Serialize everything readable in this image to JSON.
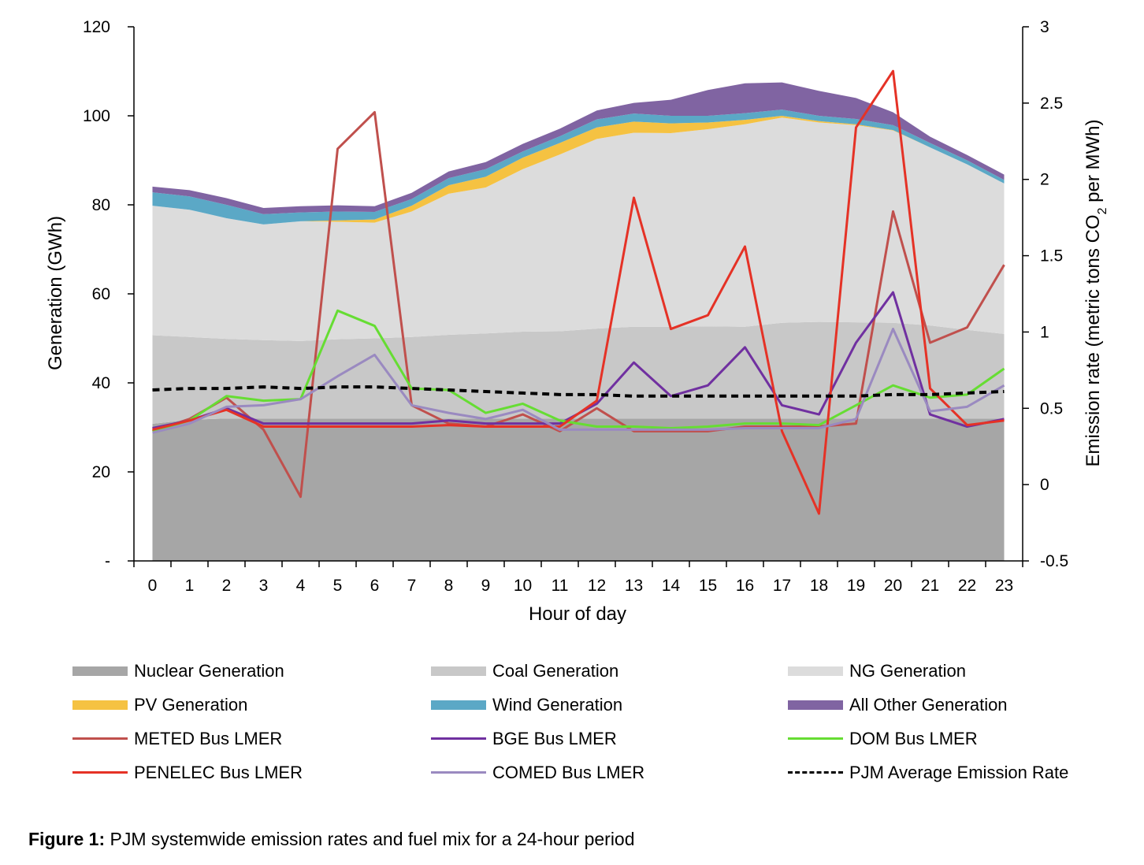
{
  "caption": {
    "label": "Figure 1:",
    "text": " PJM systemwide emission rates and fuel mix for a 24-hour period"
  },
  "chart_data": {
    "type": "area",
    "title": "",
    "xlabel": "Hour of day",
    "ylabel": "Generation (GWh)",
    "y2label_prefix": "Emission rate (metric tons CO",
    "y2label_sub": "2",
    "y2label_suffix": " per MWh)",
    "ylim": [
      0,
      120
    ],
    "y2lim": [
      -0.5,
      3
    ],
    "yticks": [
      0,
      20,
      40,
      60,
      80,
      100,
      120
    ],
    "ytick_labels": [
      "-",
      "20",
      "40",
      "60",
      "80",
      "100",
      "120"
    ],
    "y2ticks": [
      -0.5,
      0,
      0.5,
      1,
      1.5,
      2,
      2.5,
      3
    ],
    "y2tick_labels": [
      "-0.5",
      "0",
      "0.5",
      "1",
      "1.5",
      "2",
      "2.5",
      "3"
    ],
    "x": [
      0,
      1,
      2,
      3,
      4,
      5,
      6,
      7,
      8,
      9,
      10,
      11,
      12,
      13,
      14,
      15,
      16,
      17,
      18,
      19,
      20,
      21,
      22,
      23
    ],
    "xtick_labels": [
      "0",
      "1",
      "2",
      "3",
      "4",
      "5",
      "6",
      "7",
      "8",
      "9",
      "10",
      "11",
      "12",
      "13",
      "14",
      "15",
      "16",
      "17",
      "18",
      "19",
      "20",
      "21",
      "22",
      "23"
    ],
    "legend_position": "bottom",
    "stacked_series": [
      {
        "name": "Nuclear Generation",
        "color": "#a6a6a6",
        "values": [
          30.8,
          31.7,
          32.0,
          32.0,
          32.0,
          32.0,
          32.0,
          32.0,
          32.0,
          32.0,
          32.0,
          32.0,
          32.0,
          32.0,
          32.0,
          32.0,
          32.0,
          32.0,
          32.0,
          32.0,
          32.0,
          32.0,
          32.0,
          32.0
        ]
      },
      {
        "name": "Coal Generation",
        "color": "#c8c8c8",
        "values": [
          19.9,
          18.6,
          17.9,
          17.6,
          17.4,
          17.8,
          18.0,
          18.3,
          18.8,
          19.1,
          19.5,
          19.6,
          20.2,
          20.6,
          20.6,
          20.7,
          20.6,
          21.5,
          21.7,
          21.6,
          21.5,
          20.9,
          19.9,
          19.0
        ]
      },
      {
        "name": "NG Generation",
        "color": "#dcdcdc",
        "values": [
          29.1,
          28.6,
          27.1,
          26.0,
          26.9,
          26.4,
          26.0,
          28.2,
          31.7,
          32.8,
          36.5,
          39.7,
          42.6,
          43.6,
          43.5,
          44.3,
          45.5,
          46.1,
          44.8,
          44.3,
          43.2,
          40.0,
          37.2,
          33.8
        ]
      },
      {
        "name": "PV Generation",
        "color": "#f5c242",
        "values": [
          0,
          0,
          0,
          0,
          0,
          0.3,
          0.7,
          1.3,
          1.9,
          2.4,
          2.6,
          2.6,
          2.6,
          2.5,
          2.2,
          1.5,
          1.0,
          0.4,
          0.3,
          0.2,
          0.1,
          0,
          0,
          0
        ]
      },
      {
        "name": "Wind Generation",
        "color": "#5ba8c6",
        "values": [
          3.0,
          3.0,
          3.0,
          2.3,
          2.0,
          2.0,
          1.7,
          1.5,
          1.6,
          1.7,
          1.4,
          1.5,
          1.8,
          1.8,
          1.7,
          1.5,
          1.5,
          1.4,
          1.2,
          1.2,
          1.1,
          1.0,
          0.9,
          0.8
        ]
      },
      {
        "name": "All Other Generation",
        "color": "#8064a2",
        "values": [
          1.3,
          1.4,
          1.5,
          1.4,
          1.4,
          1.4,
          1.3,
          1.4,
          1.5,
          1.6,
          1.7,
          1.7,
          2.0,
          2.4,
          3.6,
          5.8,
          6.7,
          6.1,
          5.6,
          4.7,
          2.9,
          1.4,
          1.2,
          1.2
        ]
      }
    ],
    "line_series": [
      {
        "name": "METED Bus LMER",
        "color": "#c0504d",
        "dashed": false,
        "values": [
          0.35,
          0.43,
          0.57,
          0.36,
          -0.08,
          2.2,
          2.44,
          0.52,
          0.4,
          0.38,
          0.46,
          0.35,
          0.5,
          0.35,
          0.35,
          0.35,
          0.38,
          0.38,
          0.38,
          0.4,
          1.79,
          0.93,
          1.03,
          1.44
        ]
      },
      {
        "name": "BGE Bus LMER",
        "color": "#7030a0",
        "dashed": false,
        "values": [
          0.37,
          0.42,
          0.5,
          0.4,
          0.4,
          0.4,
          0.4,
          0.4,
          0.42,
          0.4,
          0.4,
          0.4,
          0.53,
          0.8,
          0.58,
          0.65,
          0.9,
          0.52,
          0.46,
          0.93,
          1.26,
          0.46,
          0.38,
          0.43
        ]
      },
      {
        "name": "DOM Bus LMER",
        "color": "#66dd33",
        "dashed": false,
        "values": [
          0.35,
          0.42,
          0.58,
          0.55,
          0.56,
          1.14,
          1.04,
          0.63,
          0.62,
          0.47,
          0.53,
          0.42,
          0.38,
          0.38,
          0.37,
          0.38,
          0.4,
          0.4,
          0.39,
          0.52,
          0.65,
          0.57,
          0.59,
          0.76
        ]
      },
      {
        "name": "PENELEC Bus LMER",
        "color": "#e53226",
        "dashed": false,
        "values": [
          0.36,
          0.42,
          0.49,
          0.38,
          0.38,
          0.38,
          0.38,
          0.38,
          0.39,
          0.38,
          0.38,
          0.38,
          0.55,
          1.88,
          1.02,
          1.11,
          1.56,
          0.35,
          -0.19,
          2.34,
          2.71,
          0.63,
          0.39,
          0.42
        ]
      },
      {
        "name": "COMED Bus LMER",
        "color": "#9a8ac0",
        "dashed": false,
        "values": [
          0.34,
          0.4,
          0.51,
          0.52,
          0.56,
          0.71,
          0.85,
          0.52,
          0.47,
          0.43,
          0.49,
          0.36,
          0.36,
          0.36,
          0.36,
          0.36,
          0.37,
          0.37,
          0.37,
          0.43,
          1.02,
          0.48,
          0.51,
          0.65
        ]
      },
      {
        "name": "PJM Average Emission Rate",
        "color": "#000000",
        "dashed": true,
        "values": [
          0.62,
          0.63,
          0.63,
          0.64,
          0.63,
          0.64,
          0.64,
          0.63,
          0.62,
          0.61,
          0.6,
          0.59,
          0.59,
          0.58,
          0.58,
          0.58,
          0.58,
          0.58,
          0.58,
          0.58,
          0.59,
          0.59,
          0.6,
          0.61
        ]
      }
    ]
  }
}
